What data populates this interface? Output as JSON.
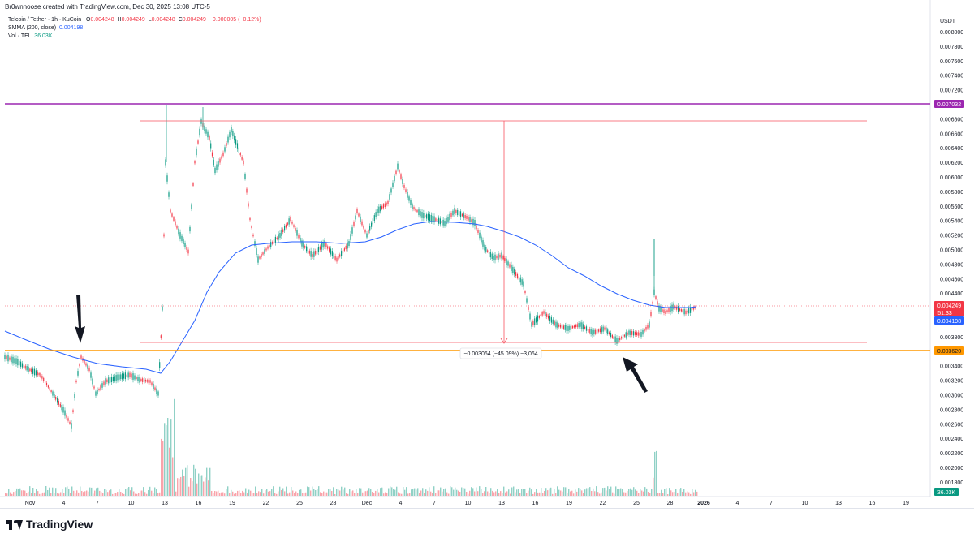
{
  "header": {
    "byline": "Br0wnnoose created with TradingView.com, Dec 30, 2025 13:08 UTC-5"
  },
  "legend": {
    "symbol": "Telcoin / Tether · 1h · KuCoin",
    "ohlc": {
      "o_label": "O",
      "o": "0.004248",
      "h_label": "H",
      "h": "0.004249",
      "l_label": "L",
      "l": "0.004248",
      "c_label": "C",
      "c": "0.004249",
      "change": "−0.000005 (−0.12%)"
    },
    "ma_label": "SMMA (200, close)",
    "ma_value": "0.004198",
    "vol_label": "Vol · TEL",
    "vol_value": "36.03K"
  },
  "price_axis": {
    "currency": "USDT",
    "ticks": [
      "0.008000",
      "0.007800",
      "0.007600",
      "0.007400",
      "0.007200",
      "0.006800",
      "0.006600",
      "0.006400",
      "0.006200",
      "0.006000",
      "0.005800",
      "0.005600",
      "0.005400",
      "0.005200",
      "0.005000",
      "0.004800",
      "0.004600",
      "0.004400",
      "0.003800",
      "0.003400",
      "0.003200",
      "0.003000",
      "0.002800",
      "0.002600",
      "0.002400",
      "0.002200",
      "0.002000",
      "0.001800"
    ],
    "tick_values": [
      0.008,
      0.0078,
      0.0076,
      0.0074,
      0.0072,
      0.0068,
      0.0066,
      0.0064,
      0.0062,
      0.006,
      0.0058,
      0.0056,
      0.0054,
      0.0052,
      0.005,
      0.0048,
      0.0046,
      0.0044,
      0.0038,
      0.0034,
      0.0032,
      0.003,
      0.0028,
      0.0026,
      0.0024,
      0.0022,
      0.002,
      0.0018
    ]
  },
  "price_labels": {
    "purple_line": "0.007032",
    "current_price": "0.004249",
    "countdown": "51:33",
    "ma_price": "0.004198",
    "orange_line": "0.003620",
    "volume": "36.03K"
  },
  "time_axis": {
    "labels": [
      "Nov",
      "4",
      "7",
      "10",
      "13",
      "16",
      "19",
      "22",
      "25",
      "28",
      "Dec",
      "4",
      "7",
      "10",
      "13",
      "16",
      "19",
      "22",
      "25",
      "28",
      "2026",
      "4",
      "7",
      "10",
      "13",
      "16",
      "19"
    ]
  },
  "measure_label": "−0.003064 (−45.09%) −3,064",
  "colors": {
    "up": "#089981",
    "down": "#f23645",
    "ma": "#2962ff",
    "purple": "#9c27b0",
    "orange": "#ff9800",
    "range_line": "#f7525f",
    "price_line": "#f23645"
  },
  "footer": {
    "brand": "TradingView"
  }
}
